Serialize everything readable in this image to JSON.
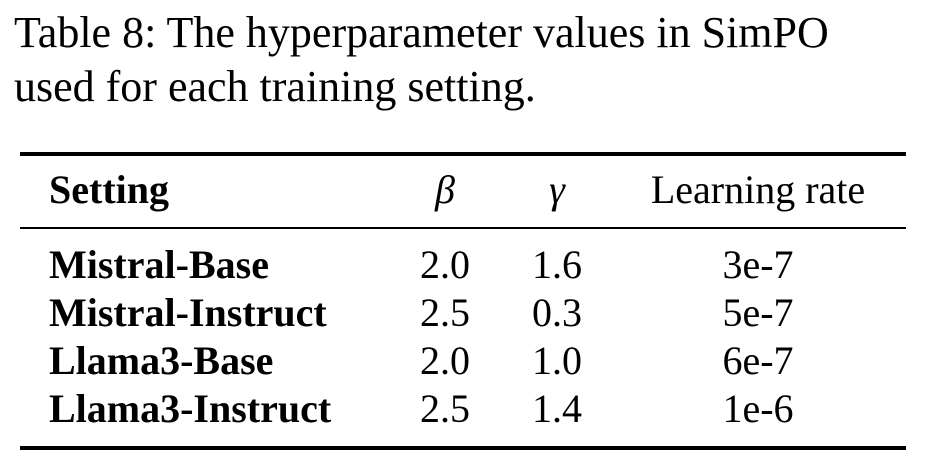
{
  "caption": "Table 8: The hyperparameter values in SimPO used for each training setting.",
  "table": {
    "headers": {
      "setting": "Setting",
      "beta": "β",
      "gamma": "γ",
      "learning_rate": "Learning rate"
    },
    "rows": [
      {
        "setting": "Mistral-Base",
        "beta": "2.0",
        "gamma": "1.6",
        "learning_rate": "3e-7"
      },
      {
        "setting": "Mistral-Instruct",
        "beta": "2.5",
        "gamma": "0.3",
        "learning_rate": "5e-7"
      },
      {
        "setting": "Llama3-Base",
        "beta": "2.0",
        "gamma": "1.0",
        "learning_rate": "6e-7"
      },
      {
        "setting": "Llama3-Instruct",
        "beta": "2.5",
        "gamma": "1.4",
        "learning_rate": "1e-6"
      }
    ]
  }
}
